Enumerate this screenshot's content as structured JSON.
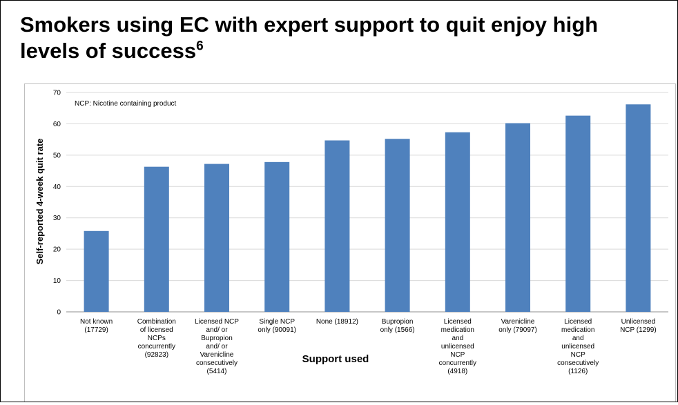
{
  "slide": {
    "title": "Smokers using EC with expert support to quit enjoy high levels of success",
    "title_superscript": "6"
  },
  "chart_data": {
    "type": "bar",
    "annotation": "NCP: Nicotine containing product",
    "ylabel": "Self-reported 4-week quit rate",
    "xlabel": "Support used",
    "ylim": [
      0,
      70
    ],
    "yticks": [
      0,
      10,
      20,
      30,
      40,
      50,
      60,
      70
    ],
    "grid": true,
    "bar_color": "#4F81BD",
    "categories": [
      [
        "Not known",
        "(17729)"
      ],
      [
        "Combination",
        "of licensed",
        "NCPs",
        "concurrently",
        "(92823)"
      ],
      [
        "Licensed NCP",
        "and/ or",
        "Bupropion",
        "and/ or",
        "Varenicline",
        "consecutively",
        "(5414)"
      ],
      [
        "Single NCP",
        "only (90091)"
      ],
      [
        "None (18912)"
      ],
      [
        "Bupropion",
        "only (1566)"
      ],
      [
        "Licensed",
        "medication",
        "and",
        "unlicensed",
        "NCP",
        "concurrently",
        "(4918)"
      ],
      [
        "Varenicline",
        "only (79097)"
      ],
      [
        "Licensed",
        "medication",
        "and",
        "unlicensed",
        "NCP",
        "consecutively",
        "(1126)"
      ],
      [
        "Unlicensed",
        "NCP (1299)"
      ]
    ],
    "values": [
      25.8,
      46.3,
      47.2,
      47.8,
      54.7,
      55.2,
      57.3,
      60.2,
      62.6,
      66.2
    ]
  }
}
